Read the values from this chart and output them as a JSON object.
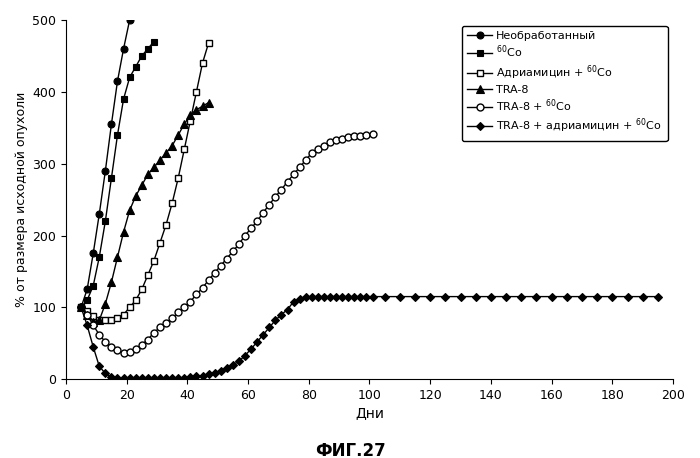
{
  "series": [
    {
      "label": "Необработанный",
      "marker": "o",
      "fillstyle": "full",
      "color": "black",
      "x": [
        5,
        7,
        9,
        11,
        13,
        15,
        17,
        19,
        21
      ],
      "y": [
        100,
        125,
        175,
        230,
        290,
        355,
        415,
        460,
        500
      ]
    },
    {
      "label": "$^{60}$Co",
      "marker": "s",
      "fillstyle": "full",
      "color": "black",
      "x": [
        5,
        7,
        9,
        11,
        13,
        15,
        17,
        19,
        21,
        23,
        25,
        27,
        29
      ],
      "y": [
        100,
        110,
        130,
        170,
        220,
        280,
        340,
        390,
        420,
        435,
        450,
        460,
        470
      ]
    },
    {
      "label": "Адриамицин + $^{60}$Co",
      "marker": "s",
      "fillstyle": "none",
      "color": "black",
      "x": [
        5,
        7,
        9,
        11,
        13,
        15,
        17,
        19,
        21,
        23,
        25,
        27,
        29,
        31,
        33,
        35,
        37,
        39,
        41,
        43,
        45,
        47
      ],
      "y": [
        100,
        95,
        88,
        83,
        82,
        83,
        85,
        90,
        100,
        110,
        125,
        145,
        165,
        190,
        215,
        245,
        280,
        320,
        360,
        400,
        440,
        468
      ]
    },
    {
      "label": "TRA-8",
      "marker": "^",
      "fillstyle": "full",
      "color": "black",
      "x": [
        5,
        7,
        9,
        11,
        13,
        15,
        17,
        19,
        21,
        23,
        25,
        27,
        29,
        31,
        33,
        35,
        37,
        39,
        41,
        43,
        45,
        47
      ],
      "y": [
        100,
        90,
        80,
        82,
        105,
        135,
        170,
        205,
        235,
        255,
        270,
        285,
        295,
        305,
        315,
        325,
        340,
        355,
        368,
        375,
        380,
        385
      ]
    },
    {
      "label": "TRA-8 + $^{60}$Co",
      "marker": "o",
      "fillstyle": "none",
      "color": "black",
      "x": [
        5,
        7,
        9,
        11,
        13,
        15,
        17,
        19,
        21,
        23,
        25,
        27,
        29,
        31,
        33,
        35,
        37,
        39,
        41,
        43,
        45,
        47,
        49,
        51,
        53,
        55,
        57,
        59,
        61,
        63,
        65,
        67,
        69,
        71,
        73,
        75,
        77,
        79,
        81,
        83,
        85,
        87,
        89,
        91,
        93,
        95,
        97,
        99,
        101
      ],
      "y": [
        100,
        90,
        75,
        62,
        52,
        45,
        40,
        37,
        38,
        42,
        48,
        55,
        65,
        72,
        78,
        85,
        93,
        100,
        108,
        118,
        127,
        138,
        148,
        158,
        168,
        178,
        188,
        200,
        210,
        220,
        232,
        243,
        254,
        264,
        275,
        285,
        295,
        305,
        315,
        320,
        325,
        330,
        333,
        335,
        337,
        338,
        339,
        340,
        341
      ]
    },
    {
      "label": "TRA-8 + адриамицин + $^{60}$Co",
      "marker": "D",
      "fillstyle": "full",
      "color": "black",
      "x": [
        5,
        7,
        9,
        11,
        13,
        15,
        17,
        19,
        21,
        23,
        25,
        27,
        29,
        31,
        33,
        35,
        37,
        39,
        41,
        43,
        45,
        47,
        49,
        51,
        53,
        55,
        57,
        59,
        61,
        63,
        65,
        67,
        69,
        71,
        73,
        75,
        77,
        79,
        81,
        83,
        85,
        87,
        89,
        91,
        93,
        95,
        97,
        99,
        101,
        105,
        110,
        115,
        120,
        125,
        130,
        135,
        140,
        145,
        150,
        155,
        160,
        165,
        170,
        175,
        180,
        185,
        190,
        195
      ],
      "y": [
        100,
        75,
        45,
        18,
        8,
        3,
        1,
        1,
        1,
        1,
        1,
        1,
        1,
        1,
        1,
        1,
        2,
        2,
        3,
        4,
        5,
        7,
        9,
        12,
        16,
        20,
        25,
        33,
        42,
        52,
        62,
        72,
        82,
        90,
        97,
        108,
        112,
        115,
        115,
        115,
        115,
        115,
        115,
        115,
        115,
        115,
        115,
        115,
        115,
        115,
        115,
        115,
        115,
        115,
        115,
        115,
        115,
        115,
        115,
        115,
        115,
        115,
        115,
        115,
        115,
        115,
        115,
        115
      ]
    }
  ],
  "xlabel": "Дни",
  "ylabel": "% от размера исходной опухоли",
  "xlim": [
    0,
    200
  ],
  "ylim": [
    0,
    500
  ],
  "xticks": [
    0,
    20,
    40,
    60,
    80,
    100,
    120,
    140,
    160,
    180,
    200
  ],
  "yticks": [
    0,
    100,
    200,
    300,
    400,
    500
  ],
  "figsize": [
    7.0,
    4.58
  ],
  "dpi": 100,
  "caption": "ФИГ.27",
  "background_color": "#ffffff",
  "legend_labels": [
    "Необработанный",
    "$^{60}$Co",
    "Адриамицин + $^{60}$Co",
    "TRA-8",
    "TRA-8 + $^{60}$Co",
    "TRA-8 + адриамицин + $^{60}$Co"
  ]
}
